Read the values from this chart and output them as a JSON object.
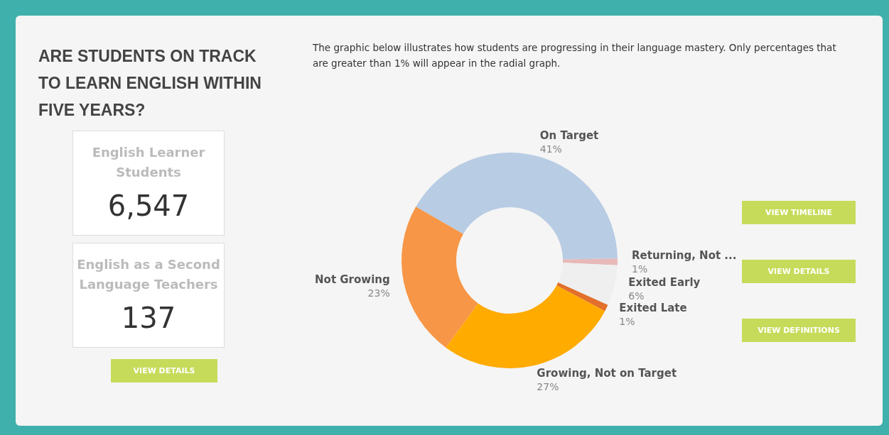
{
  "chart_data": [
    {
      "type": "other",
      "title": "ARE STUDENTS ON TRACK TO LEARN ENGLISH WITHIN FIVE YEARS?",
      "annotations": [
        "English Learner Students",
        "6,547",
        "English as a Second Language Teachers",
        "137",
        "VIEW DETAILS"
      ]
    },
    {
      "type": "donut",
      "subtitle": "The graphic below illustrates how students are progressing in their language mastery.  Only percentages that are greater than 1% will appear in the radial graph.",
      "categories": [
        "On Target",
        "Returning, Not ...",
        "Exited Early",
        "Exited Late",
        "Growing, Not on Target",
        "Not Growing"
      ],
      "values": [
        41,
        1,
        6,
        1,
        27,
        23
      ],
      "value_labels": [
        "41%",
        "1%",
        "6%",
        "1%",
        "27%",
        "23%"
      ],
      "colors": [
        "#b8cce4",
        "#e6b9b8",
        "#efefef",
        "#e2702c",
        "#ffab00",
        "#f79646"
      ],
      "annotations": [
        "VIEW TIMELINE",
        "VIEW DETAILS",
        "VIEW DEFINITIONS"
      ]
    }
  ]
}
